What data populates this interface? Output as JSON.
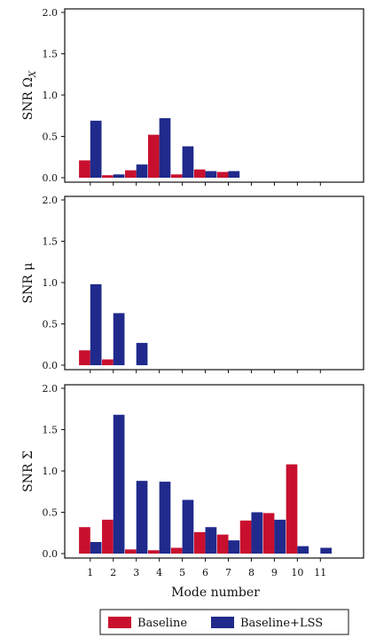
{
  "colors": {
    "baseline": "#C8102E",
    "lss": "#1F2A8C"
  },
  "legend": [
    "Baseline",
    "Baseline+LSS"
  ],
  "chart_data": [
    {
      "type": "bar",
      "ylabel": "SNR Ω",
      "ylabel_sub": "X",
      "ylim": [
        0,
        2.0
      ],
      "yticks": [
        "0.0",
        "0.5",
        "1.0",
        "1.5",
        "2.0"
      ],
      "categories": [
        "1",
        "2",
        "3",
        "4",
        "5",
        "6",
        "7",
        "8",
        "9",
        "10",
        "11"
      ],
      "series": [
        {
          "name": "Baseline",
          "values": [
            0.21,
            0.03,
            0.09,
            0.52,
            0.04,
            0.1,
            0.07,
            0,
            0,
            0,
            0
          ]
        },
        {
          "name": "Baseline+LSS",
          "values": [
            0.69,
            0.04,
            0.16,
            0.72,
            0.38,
            0.08,
            0.08,
            0,
            0,
            0,
            0
          ]
        }
      ]
    },
    {
      "type": "bar",
      "ylabel": "SNR μ",
      "ylim": [
        0,
        2.0
      ],
      "yticks": [
        "0.0",
        "0.5",
        "1.0",
        "1.5",
        "2.0"
      ],
      "categories": [
        "1",
        "2",
        "3",
        "4",
        "5",
        "6",
        "7",
        "8",
        "9",
        "10",
        "11"
      ],
      "series": [
        {
          "name": "Baseline",
          "values": [
            0.18,
            0.07,
            0,
            0,
            0,
            0,
            0,
            0,
            0,
            0,
            0
          ]
        },
        {
          "name": "Baseline+LSS",
          "values": [
            0.98,
            0.63,
            0.27,
            0,
            0,
            0,
            0,
            0,
            0,
            0,
            0
          ]
        }
      ]
    },
    {
      "type": "bar",
      "ylabel": "SNR Σ",
      "xlabel": "Mode number",
      "ylim": [
        0,
        2.0
      ],
      "yticks": [
        "0.0",
        "0.5",
        "1.0",
        "1.5",
        "2.0"
      ],
      "categories": [
        "1",
        "2",
        "3",
        "4",
        "5",
        "6",
        "7",
        "8",
        "9",
        "10",
        "11"
      ],
      "series": [
        {
          "name": "Baseline",
          "values": [
            0.32,
            0.41,
            0.05,
            0.04,
            0.07,
            0.26,
            0.23,
            0.4,
            0.49,
            1.08,
            0
          ]
        },
        {
          "name": "Baseline+LSS",
          "values": [
            0.14,
            1.68,
            0.88,
            0.87,
            0.65,
            0.32,
            0.16,
            0.5,
            0.41,
            0.09,
            0.07
          ]
        }
      ]
    }
  ]
}
